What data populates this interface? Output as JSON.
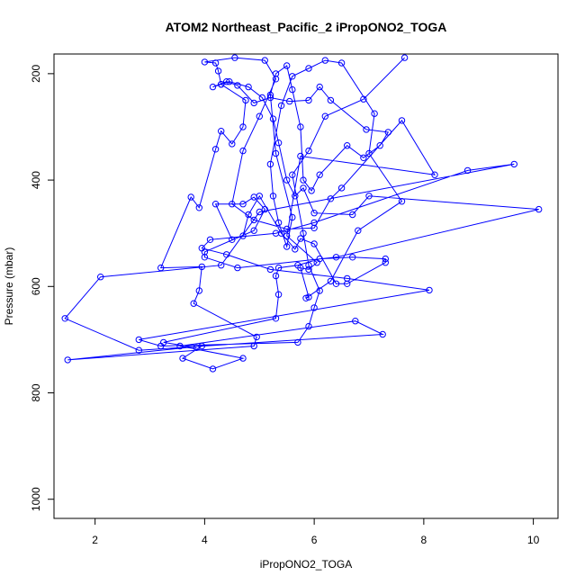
{
  "chart_data": {
    "type": "line",
    "title": "ATOM2 Northeast_Pacific_2 iPropONO2_TOGA",
    "xlabel": "iPropONO2_TOGA",
    "ylabel": "Pressure (mbar)",
    "xlim": [
      1.25,
      10.45
    ],
    "ylim": [
      1036,
      163
    ],
    "y_reversed": true,
    "x_ticks": [
      2,
      4,
      6,
      8,
      10
    ],
    "y_ticks": [
      200,
      400,
      600,
      800,
      1000
    ],
    "grid": false,
    "legend": "none",
    "marker": "open-circle",
    "color": "#0000ff",
    "series": [
      {
        "values": [
          [
            7.65,
            170
          ],
          [
            6.9,
            248
          ],
          [
            6.2,
            280
          ],
          [
            5.9,
            345
          ],
          [
            5.6,
            390
          ],
          [
            5.8,
            500
          ],
          [
            5.9,
            560
          ],
          [
            6.1,
            608
          ],
          [
            6.0,
            640
          ],
          [
            5.9,
            675
          ],
          [
            5.7,
            705
          ],
          [
            3.2,
            712
          ],
          [
            2.8,
            700
          ],
          [
            8.1,
            607
          ],
          [
            6.6,
            585
          ],
          [
            5.2,
            568
          ],
          [
            4.4,
            540
          ],
          [
            3.95,
            528
          ],
          [
            4.1,
            512
          ],
          [
            5.3,
            500
          ],
          [
            6.0,
            480
          ],
          [
            8.8,
            382
          ],
          [
            9.65,
            370
          ],
          [
            5.0,
            460
          ],
          [
            4.3,
            560
          ],
          [
            2.1,
            582
          ],
          [
            1.45,
            660
          ],
          [
            2.8,
            720
          ],
          [
            7.25,
            690
          ],
          [
            6.75,
            665
          ],
          [
            3.55,
            712
          ],
          [
            4.7,
            735
          ],
          [
            4.15,
            755
          ],
          [
            3.6,
            735
          ],
          [
            3.95,
            712
          ],
          [
            1.5,
            738
          ],
          [
            4.9,
            712
          ],
          [
            4.95,
            695
          ],
          [
            3.8,
            632
          ],
          [
            3.9,
            608
          ],
          [
            3.95,
            563
          ],
          [
            3.2,
            565
          ],
          [
            3.75,
            432
          ],
          [
            3.9,
            452
          ],
          [
            4.2,
            342
          ],
          [
            4.3,
            308
          ],
          [
            4.5,
            332
          ],
          [
            4.7,
            300
          ],
          [
            4.75,
            250
          ],
          [
            4.3,
            220
          ],
          [
            4.25,
            195
          ],
          [
            4.2,
            180
          ],
          [
            4.0,
            178
          ],
          [
            4.55,
            170
          ],
          [
            5.1,
            175
          ],
          [
            5.3,
            210
          ],
          [
            5.0,
            280
          ],
          [
            4.7,
            345
          ],
          [
            4.5,
            445
          ],
          [
            4.9,
            475
          ],
          [
            5.5,
            492
          ],
          [
            6.0,
            490
          ],
          [
            6.3,
            435
          ],
          [
            6.5,
            415
          ],
          [
            7.6,
            288
          ],
          [
            8.2,
            390
          ],
          [
            5.75,
            355
          ],
          [
            5.5,
            505
          ],
          [
            6.05,
            555
          ],
          [
            5.9,
            568
          ],
          [
            5.75,
            565
          ],
          [
            5.9,
            620
          ],
          [
            5.85,
            622
          ],
          [
            6.3,
            590
          ],
          [
            6.8,
            495
          ],
          [
            7.6,
            440
          ],
          [
            7.0,
            350
          ],
          [
            7.1,
            275
          ],
          [
            6.5,
            180
          ],
          [
            6.2,
            175
          ],
          [
            5.9,
            190
          ],
          [
            5.6,
            205
          ],
          [
            5.4,
            260
          ],
          [
            5.2,
            370
          ],
          [
            5.25,
            430
          ],
          [
            5.35,
            480
          ],
          [
            5.5,
            525
          ],
          [
            5.6,
            470
          ],
          [
            5.3,
            350
          ],
          [
            5.2,
            240
          ],
          [
            5.3,
            200
          ],
          [
            5.5,
            185
          ],
          [
            5.6,
            230
          ],
          [
            5.75,
            300
          ],
          [
            5.8,
            400
          ],
          [
            5.95,
            420
          ],
          [
            6.1,
            390
          ],
          [
            6.6,
            335
          ],
          [
            6.9,
            358
          ],
          [
            7.2,
            335
          ],
          [
            7.35,
            310
          ],
          [
            6.95,
            305
          ],
          [
            6.3,
            250
          ],
          [
            6.1,
            225
          ],
          [
            5.9,
            250
          ],
          [
            5.55,
            252
          ],
          [
            5.2,
            245
          ],
          [
            4.9,
            255
          ],
          [
            4.6,
            222
          ],
          [
            4.4,
            215
          ],
          [
            4.15,
            225
          ],
          [
            4.3,
            220
          ],
          [
            4.45,
            215
          ],
          [
            4.8,
            225
          ],
          [
            5.05,
            245
          ],
          [
            5.25,
            285
          ],
          [
            5.35,
            330
          ],
          [
            5.5,
            400
          ],
          [
            5.65,
            430
          ],
          [
            5.8,
            415
          ],
          [
            6.0,
            462
          ],
          [
            6.7,
            465
          ],
          [
            7.0,
            430
          ],
          [
            10.1,
            455
          ],
          [
            6.4,
            545
          ],
          [
            4.6,
            565
          ],
          [
            4.0,
            545
          ],
          [
            4.0,
            535
          ],
          [
            4.9,
            495
          ],
          [
            5.1,
            455
          ],
          [
            4.9,
            432
          ],
          [
            4.7,
            445
          ],
          [
            4.2,
            445
          ],
          [
            4.5,
            512
          ],
          [
            4.7,
            505
          ],
          [
            4.8,
            465
          ],
          [
            5.0,
            430
          ],
          [
            5.4,
            500
          ],
          [
            5.65,
            530
          ],
          [
            5.75,
            510
          ],
          [
            6.0,
            520
          ],
          [
            6.4,
            595
          ],
          [
            6.6,
            595
          ],
          [
            7.3,
            555
          ],
          [
            7.3,
            548
          ],
          [
            6.7,
            545
          ],
          [
            6.1,
            548
          ],
          [
            5.7,
            560
          ],
          [
            5.35,
            565
          ],
          [
            5.3,
            580
          ],
          [
            5.35,
            615
          ],
          [
            5.3,
            660
          ],
          [
            3.25,
            705
          ],
          [
            3.85,
            715
          ]
        ]
      }
    ]
  }
}
